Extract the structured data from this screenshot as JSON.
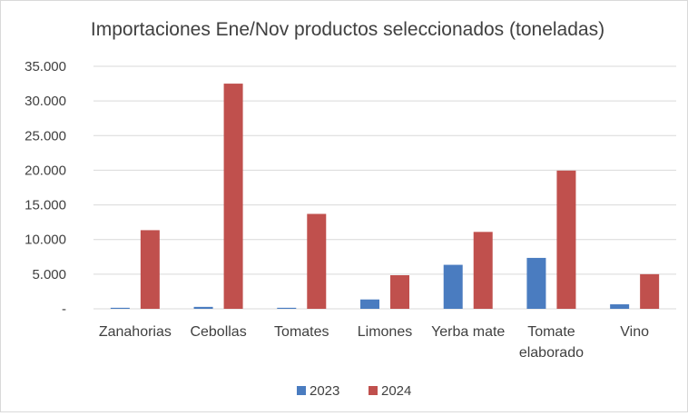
{
  "chart_data": {
    "type": "bar",
    "title": "Importaciones Ene/Nov productos seleccionados (toneladas)",
    "categories": [
      [
        "Zanahorias"
      ],
      [
        "Cebollas"
      ],
      [
        "Tomates"
      ],
      [
        "Limones"
      ],
      [
        "Yerba mate"
      ],
      [
        "Tomate",
        "elaborado"
      ],
      [
        "Vino"
      ]
    ],
    "series": [
      {
        "name": "2023",
        "color": "#4a7cc0",
        "values": [
          150,
          280,
          150,
          1350,
          6350,
          7350,
          650
        ]
      },
      {
        "name": "2024",
        "color": "#c0504d",
        "values": [
          11350,
          32500,
          13700,
          4850,
          11100,
          19950,
          5000
        ]
      }
    ],
    "ylim": [
      0,
      35000
    ],
    "yticks": [
      0,
      5000,
      10000,
      15000,
      20000,
      25000,
      30000,
      35000
    ],
    "ytick_labels": [
      "-",
      "5.000",
      "10.000",
      "15.000",
      "20.000",
      "25.000",
      "30.000",
      "35.000"
    ],
    "grid": true,
    "legend_position": "bottom"
  }
}
